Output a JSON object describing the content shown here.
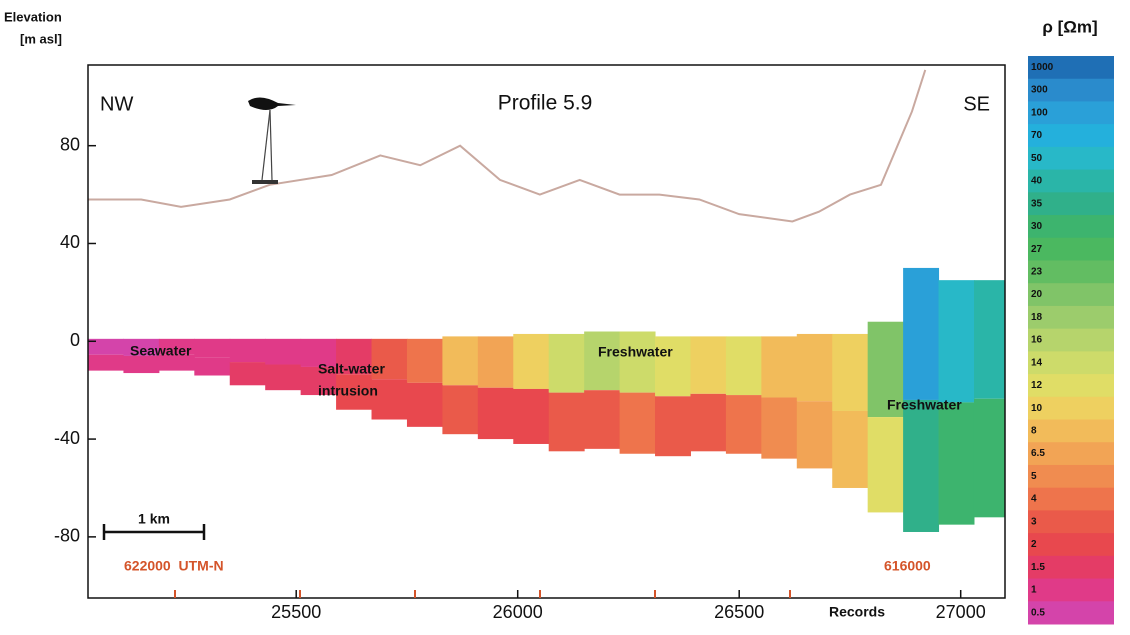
{
  "chart_data": {
    "type": "section",
    "title": "Profile 5.9",
    "y_label_lines": [
      "Elevation",
      "[m asl]"
    ],
    "left_label": "NW",
    "right_label": "SE",
    "x_label": "Records",
    "scale_bar_label": "1 km",
    "utm_left": "622000  UTM-N",
    "utm_right": "616000",
    "xlim": [
      25030,
      27100
    ],
    "ylim": [
      -105,
      113
    ],
    "xticks": [
      25500,
      26000,
      26500,
      27000
    ],
    "yticks": [
      80,
      40,
      0,
      -40,
      -80
    ],
    "terrain": {
      "color": "#c9a9a0",
      "x": [
        25030,
        25150,
        25240,
        25350,
        25440,
        25580,
        25690,
        25780,
        25870,
        25960,
        26050,
        26140,
        26230,
        26320,
        26410,
        26500,
        26620,
        26680,
        26750,
        26820,
        26890,
        26920
      ],
      "values": [
        58,
        58,
        55,
        58,
        64,
        68,
        76,
        72,
        80,
        66,
        60,
        66,
        60,
        60,
        58,
        52,
        49,
        53,
        60,
        64,
        94,
        111
      ]
    },
    "resistivity": {
      "x": [
        25070,
        25150,
        25230,
        25310,
        25390,
        25470,
        25550,
        25630,
        25710,
        25790,
        25870,
        25950,
        26030,
        26110,
        26190,
        26270,
        26350,
        26430,
        26510,
        26590,
        26670,
        26750,
        26830,
        26910,
        26990,
        27070
      ],
      "top": [
        1,
        1,
        1,
        1,
        1,
        1,
        1,
        1,
        1,
        1,
        2,
        2,
        3,
        3,
        4,
        4,
        2,
        2,
        2,
        2,
        3,
        3,
        8,
        30,
        25,
        25
      ],
      "bottom": [
        -12,
        -13,
        -12,
        -14,
        -18,
        -20,
        -22,
        -28,
        -32,
        -35,
        -38,
        -40,
        -42,
        -45,
        -44,
        -46,
        -47,
        -45,
        -46,
        -48,
        -52,
        -60,
        -70,
        -78,
        -75,
        -72
      ],
      "rho_upper": [
        0.7,
        0.7,
        0.8,
        0.8,
        0.9,
        1,
        1.2,
        1.5,
        3,
        4,
        8,
        6.5,
        10,
        14,
        16,
        14,
        12,
        10,
        12,
        8,
        8,
        10,
        20,
        100,
        50,
        40
      ],
      "rho_lower": [
        0.8,
        0.9,
        1,
        1.2,
        1.5,
        1.5,
        1.5,
        2,
        2,
        2,
        3,
        2,
        2,
        3,
        3,
        4,
        3,
        3,
        4,
        5,
        6.5,
        8,
        12,
        35,
        30,
        30
      ]
    },
    "annotations": [
      [
        "Seawater"
      ],
      [
        "Salt-water",
        "intrusion"
      ],
      [
        "Freshwater"
      ],
      [
        "Freshwater"
      ]
    ],
    "colorbar": {
      "title": "ρ [Ωm]",
      "labels": [
        1000,
        300,
        100,
        70,
        50,
        40,
        35,
        30,
        27,
        23,
        20,
        18,
        16,
        14,
        12,
        10,
        8,
        6.5,
        5,
        4,
        3,
        2,
        1.5,
        1,
        0.5
      ],
      "colors": [
        "#1f6fb5",
        "#2a8bcc",
        "#2aa0d8",
        "#24b0dc",
        "#28b8c8",
        "#2ab5a8",
        "#30b08a",
        "#3db46e",
        "#4bb860",
        "#62bd62",
        "#80c468",
        "#9ccc6c",
        "#b6d46c",
        "#cddb6a",
        "#e0dd66",
        "#eed060",
        "#f2bb5a",
        "#f2a455",
        "#f08c50",
        "#ee744c",
        "#ea5a4a",
        "#e8484e",
        "#e43c66",
        "#e03a88",
        "#d444aa"
      ]
    }
  }
}
